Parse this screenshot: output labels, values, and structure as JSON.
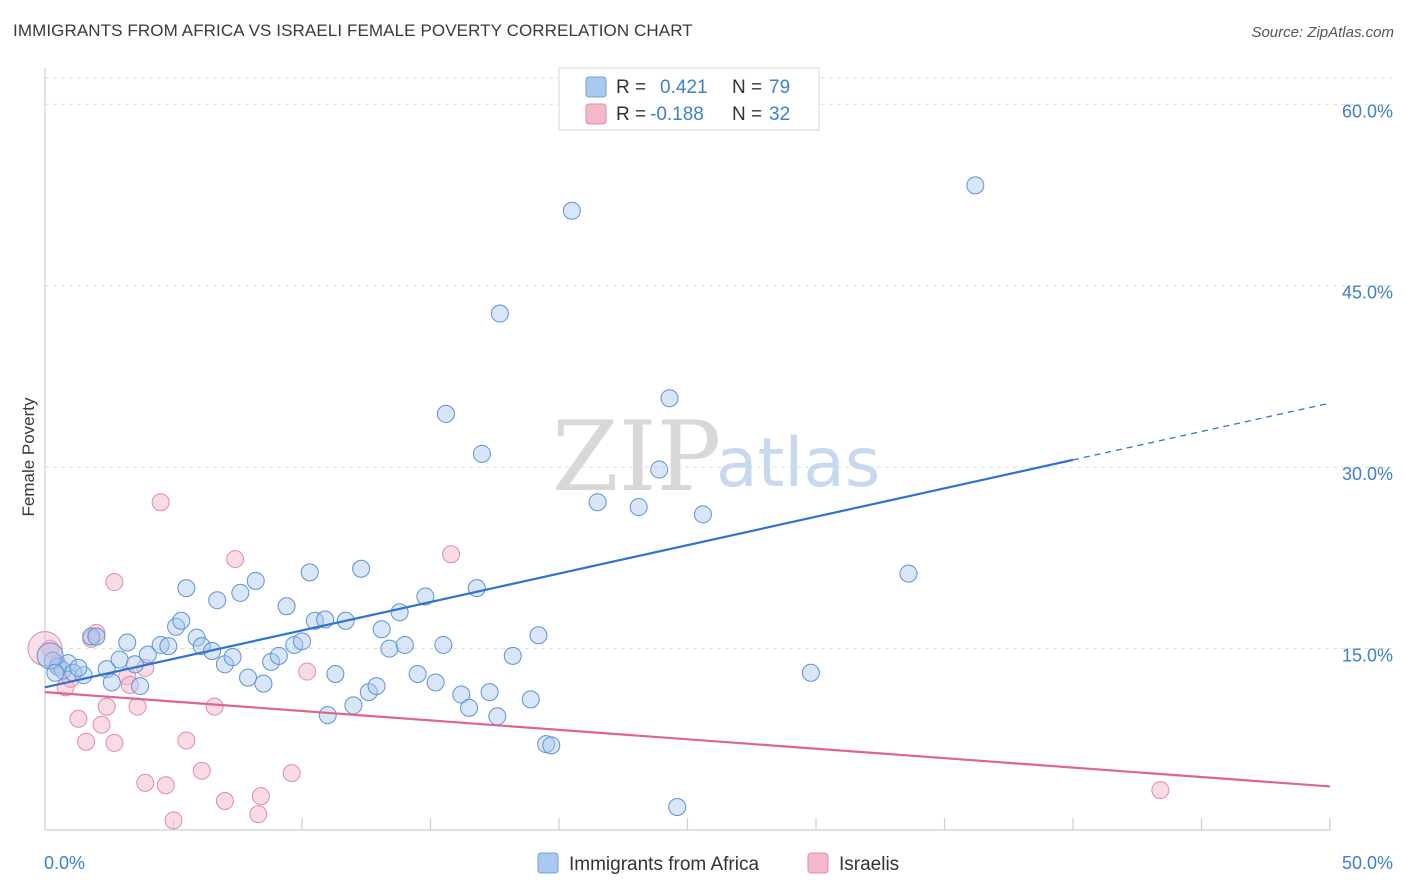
{
  "header": {
    "title": "IMMIGRANTS FROM AFRICA VS ISRAELI FEMALE POVERTY CORRELATION CHART",
    "source": "Source: ZipAtlas.com"
  },
  "watermark": {
    "zip": "ZIP",
    "atlas": "atlas"
  },
  "colors": {
    "blue": "#2e72d2",
    "blue_fill": "#a9c8ee",
    "pink": "#e0648f",
    "pink_fill": "#f4b8cb",
    "tick_text": "#3d7fd1",
    "grid": "#dcdcdc"
  },
  "legend": {
    "rows": [
      {
        "r_label": "R =",
        "r_value": "0.421",
        "n_label": "N =",
        "n_value": "79"
      },
      {
        "r_label": "R =",
        "r_value": "-0.188",
        "n_label": "N =",
        "n_value": "32"
      }
    ]
  },
  "bottom_legend": [
    {
      "label": "Immigrants from Africa"
    },
    {
      "label": "Israelis"
    }
  ],
  "chart_data": {
    "type": "scatter",
    "title": "IMMIGRANTS FROM AFRICA VS ISRAELI FEMALE POVERTY CORRELATION CHART",
    "xlabel": "",
    "ylabel": "Female Poverty",
    "xlim": [
      0,
      50
    ],
    "ylim": [
      0,
      63
    ],
    "x_tick_labels": [
      "0.0%",
      "50.0%"
    ],
    "y_ticks": [
      15,
      30,
      45,
      60
    ],
    "y_tick_labels": [
      "15.0%",
      "30.0%",
      "45.0%",
      "60.0%"
    ],
    "grid": true,
    "legend_position": "top-center",
    "series": [
      {
        "name": "Immigrants from Africa",
        "r": 0.421,
        "n": 79,
        "trend": {
          "x0": 0,
          "y0": 11.8,
          "x1": 40,
          "y1": 30.6,
          "dashed_to_x": 50,
          "dashed_to_y": 35.3
        },
        "points": [
          [
            0.3,
            14.0
          ],
          [
            0.5,
            13.5
          ],
          [
            0.7,
            13.2
          ],
          [
            0.9,
            13.8
          ],
          [
            1.1,
            13.0
          ],
          [
            1.5,
            12.8
          ],
          [
            1.8,
            16.0
          ],
          [
            2.0,
            16.0
          ],
          [
            2.4,
            13.3
          ],
          [
            2.6,
            12.2
          ],
          [
            2.9,
            14.1
          ],
          [
            3.2,
            15.5
          ],
          [
            3.5,
            13.7
          ],
          [
            3.7,
            11.9
          ],
          [
            4.0,
            14.5
          ],
          [
            4.5,
            15.3
          ],
          [
            4.8,
            15.2
          ],
          [
            5.1,
            16.8
          ],
          [
            5.3,
            17.3
          ],
          [
            5.5,
            20.0
          ],
          [
            5.9,
            15.9
          ],
          [
            6.1,
            15.2
          ],
          [
            6.5,
            14.8
          ],
          [
            6.7,
            19.0
          ],
          [
            7.0,
            13.7
          ],
          [
            7.3,
            14.3
          ],
          [
            7.6,
            19.6
          ],
          [
            7.9,
            12.6
          ],
          [
            8.2,
            20.6
          ],
          [
            8.5,
            12.1
          ],
          [
            8.8,
            13.9
          ],
          [
            9.1,
            14.4
          ],
          [
            9.4,
            18.5
          ],
          [
            9.7,
            15.3
          ],
          [
            10.0,
            15.6
          ],
          [
            10.3,
            21.3
          ],
          [
            10.5,
            17.3
          ],
          [
            10.9,
            17.4
          ],
          [
            11.0,
            9.5
          ],
          [
            11.3,
            12.9
          ],
          [
            11.7,
            17.3
          ],
          [
            12.0,
            10.3
          ],
          [
            12.3,
            21.6
          ],
          [
            12.6,
            11.4
          ],
          [
            12.9,
            11.9
          ],
          [
            13.1,
            16.6
          ],
          [
            13.4,
            15.0
          ],
          [
            13.8,
            18.0
          ],
          [
            14.0,
            15.3
          ],
          [
            14.5,
            12.9
          ],
          [
            14.8,
            19.3
          ],
          [
            15.2,
            12.2
          ],
          [
            15.5,
            15.3
          ],
          [
            15.6,
            34.4
          ],
          [
            16.2,
            11.2
          ],
          [
            16.5,
            10.1
          ],
          [
            16.8,
            20.0
          ],
          [
            17.0,
            31.1
          ],
          [
            17.3,
            11.4
          ],
          [
            17.6,
            9.4
          ],
          [
            17.7,
            42.7
          ],
          [
            18.2,
            14.4
          ],
          [
            18.9,
            10.8
          ],
          [
            19.2,
            16.1
          ],
          [
            19.5,
            7.1
          ],
          [
            19.7,
            7.0
          ],
          [
            20.5,
            51.2
          ],
          [
            21.5,
            27.1
          ],
          [
            23.1,
            26.7
          ],
          [
            23.9,
            29.8
          ],
          [
            24.3,
            35.7
          ],
          [
            24.6,
            1.9
          ],
          [
            25.6,
            26.1
          ],
          [
            29.8,
            13.0
          ],
          [
            33.6,
            21.2
          ],
          [
            36.2,
            53.3
          ],
          [
            0.2,
            14.4
          ],
          [
            0.4,
            13.0
          ],
          [
            1.3,
            13.4
          ]
        ]
      },
      {
        "name": "Israelis",
        "r": -0.188,
        "n": 32,
        "trend": {
          "x0": 0,
          "y0": 11.4,
          "x1": 50,
          "y1": 3.6
        },
        "points": [
          [
            0.2,
            15.0
          ],
          [
            0.5,
            13.7
          ],
          [
            0.8,
            11.8
          ],
          [
            1.0,
            12.5
          ],
          [
            1.3,
            9.2
          ],
          [
            1.6,
            7.3
          ],
          [
            1.8,
            15.8
          ],
          [
            2.0,
            16.3
          ],
          [
            2.2,
            8.7
          ],
          [
            2.4,
            10.2
          ],
          [
            2.7,
            7.2
          ],
          [
            2.7,
            20.5
          ],
          [
            3.2,
            12.7
          ],
          [
            3.3,
            12.0
          ],
          [
            3.6,
            10.2
          ],
          [
            3.9,
            13.4
          ],
          [
            3.9,
            3.9
          ],
          [
            4.5,
            27.1
          ],
          [
            4.7,
            3.7
          ],
          [
            5.0,
            0.8
          ],
          [
            5.5,
            7.4
          ],
          [
            6.1,
            4.9
          ],
          [
            6.6,
            10.2
          ],
          [
            7.0,
            2.4
          ],
          [
            7.4,
            22.4
          ],
          [
            8.3,
            1.3
          ],
          [
            8.4,
            2.8
          ],
          [
            9.6,
            4.7
          ],
          [
            10.2,
            13.1
          ],
          [
            15.8,
            22.8
          ],
          [
            43.4,
            3.3
          ],
          [
            0.0,
            15.0
          ]
        ]
      }
    ]
  }
}
